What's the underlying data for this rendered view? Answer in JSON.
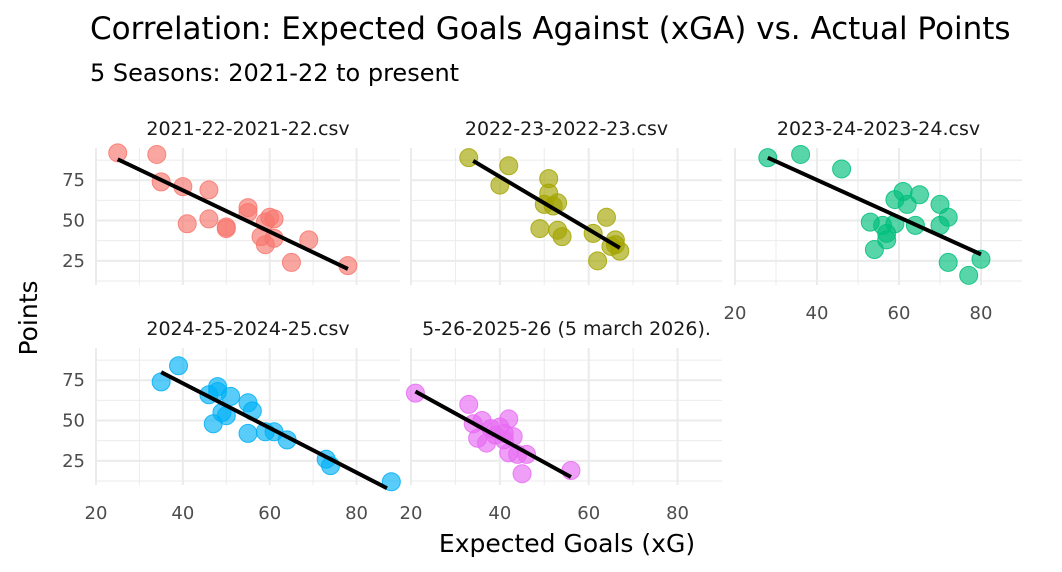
{
  "chart_data": {
    "type": "scatter",
    "title": "Correlation: Expected Goals Against (xGA) vs. Actual Points",
    "subtitle": "5 Seasons: 2021-22 to present",
    "xlabel": "Expected Goals (xG)",
    "ylabel": "Points",
    "xlim": [
      20,
      90
    ],
    "ylim": [
      10,
      95
    ],
    "x_ticks": [
      20,
      40,
      60,
      80
    ],
    "y_ticks": [
      25,
      50,
      75
    ],
    "grid": true,
    "legend": "none",
    "panels": [
      {
        "label": "2021-22-2021-22.csv",
        "color": "#F8766D",
        "points": [
          [
            25,
            92
          ],
          [
            34,
            91
          ],
          [
            35,
            74
          ],
          [
            40,
            71
          ],
          [
            41,
            48
          ],
          [
            46,
            51
          ],
          [
            46,
            69
          ],
          [
            50,
            46
          ],
          [
            50,
            45
          ],
          [
            55,
            58
          ],
          [
            55,
            55
          ],
          [
            58,
            40
          ],
          [
            59,
            35
          ],
          [
            59,
            49
          ],
          [
            60,
            52
          ],
          [
            61,
            39
          ],
          [
            61,
            51
          ],
          [
            65,
            24
          ],
          [
            69,
            38
          ],
          [
            78,
            22
          ]
        ],
        "fit": [
          [
            25,
            88
          ],
          [
            78,
            20
          ]
        ]
      },
      {
        "label": "2022-23-2022-23.csv",
        "color": "#A3A500",
        "points": [
          [
            33,
            89
          ],
          [
            40,
            72
          ],
          [
            42,
            84
          ],
          [
            49,
            45
          ],
          [
            50,
            60
          ],
          [
            51,
            76
          ],
          [
            51,
            67
          ],
          [
            52,
            59
          ],
          [
            53,
            44
          ],
          [
            53,
            61
          ],
          [
            54,
            40
          ],
          [
            61,
            42
          ],
          [
            62,
            25
          ],
          [
            64,
            52
          ],
          [
            65,
            34
          ],
          [
            66,
            38
          ],
          [
            66,
            35
          ],
          [
            67,
            31
          ]
        ],
        "fit": [
          [
            34,
            87
          ],
          [
            67,
            33
          ]
        ]
      },
      {
        "label": "2023-24-2023-24.csv",
        "color": "#00BF7D",
        "points": [
          [
            28,
            89
          ],
          [
            36,
            91
          ],
          [
            46,
            82
          ],
          [
            53,
            49
          ],
          [
            54,
            32
          ],
          [
            56,
            47
          ],
          [
            57,
            38
          ],
          [
            57,
            42
          ],
          [
            59,
            48
          ],
          [
            59,
            63
          ],
          [
            61,
            68
          ],
          [
            62,
            60
          ],
          [
            64,
            47
          ],
          [
            65,
            66
          ],
          [
            70,
            60
          ],
          [
            70,
            47
          ],
          [
            72,
            52
          ],
          [
            72,
            24
          ],
          [
            77,
            16
          ],
          [
            80,
            26
          ]
        ],
        "fit": [
          [
            28,
            89
          ],
          [
            80,
            29
          ]
        ]
      },
      {
        "label": "2024-25-2024-25.csv",
        "color": "#00B0F6",
        "points": [
          [
            35,
            74
          ],
          [
            39,
            84
          ],
          [
            46,
            66
          ],
          [
            47,
            48
          ],
          [
            48,
            71
          ],
          [
            48,
            68
          ],
          [
            49,
            55
          ],
          [
            50,
            53
          ],
          [
            51,
            65
          ],
          [
            55,
            42
          ],
          [
            55,
            61
          ],
          [
            56,
            56
          ],
          [
            59,
            43
          ],
          [
            61,
            43
          ],
          [
            64,
            38
          ],
          [
            73,
            26
          ],
          [
            74,
            22
          ],
          [
            88,
            12
          ]
        ],
        "fit": [
          [
            35,
            80
          ],
          [
            87,
            8
          ]
        ]
      },
      {
        "label": "5-26-2025-26 (5 march 2026).",
        "color": "#E76BF3",
        "points": [
          [
            21,
            67
          ],
          [
            33,
            60
          ],
          [
            34,
            48
          ],
          [
            35,
            39
          ],
          [
            36,
            50
          ],
          [
            37,
            36
          ],
          [
            38,
            45
          ],
          [
            39,
            41
          ],
          [
            40,
            46
          ],
          [
            41,
            38
          ],
          [
            41,
            42
          ],
          [
            42,
            30
          ],
          [
            42,
            51
          ],
          [
            43,
            40
          ],
          [
            44,
            29
          ],
          [
            45,
            17
          ],
          [
            46,
            29
          ],
          [
            56,
            19
          ]
        ],
        "fit": [
          [
            21,
            68
          ],
          [
            56,
            15
          ]
        ]
      }
    ]
  }
}
